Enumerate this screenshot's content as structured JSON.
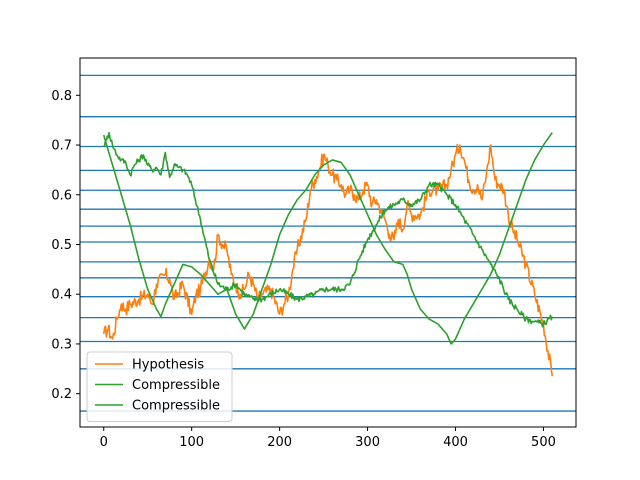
{
  "chart_data": {
    "type": "line",
    "grid": "horizontal reference lines",
    "legend_placement": "lower-left",
    "xlim": [
      -27,
      537
    ],
    "ylim": [
      0.133,
      0.875
    ],
    "x_ticks": [
      0,
      100,
      200,
      300,
      400,
      500
    ],
    "y_ticks": [
      0.2,
      0.3,
      0.4,
      0.5,
      0.6,
      0.7,
      0.8
    ],
    "hlines": [
      0.165,
      0.25,
      0.305,
      0.353,
      0.395,
      0.433,
      0.465,
      0.505,
      0.537,
      0.571,
      0.609,
      0.649,
      0.697,
      0.757,
      0.84
    ],
    "hline_color": "#1f77b4",
    "series": [
      {
        "name": "Hypothesis",
        "color": "#ff7f0e",
        "jitter": 0.014,
        "x": [
          0,
          5,
          10,
          15,
          20,
          25,
          30,
          40,
          50,
          55,
          60,
          70,
          75,
          80,
          90,
          100,
          105,
          110,
          120,
          125,
          130,
          135,
          140,
          145,
          150,
          155,
          160,
          165,
          170,
          175,
          180,
          190,
          200,
          205,
          210,
          215,
          220,
          230,
          235,
          240,
          245,
          250,
          255,
          260,
          265,
          270,
          275,
          280,
          285,
          290,
          295,
          300,
          305,
          310,
          315,
          320,
          325,
          330,
          335,
          340,
          345,
          350,
          360,
          370,
          380,
          390,
          395,
          400,
          405,
          410,
          415,
          420,
          425,
          430,
          435,
          440,
          445,
          450,
          455,
          460,
          465,
          470,
          480,
          490,
          500,
          510
        ],
        "y": [
          0.32,
          0.33,
          0.31,
          0.35,
          0.38,
          0.37,
          0.38,
          0.39,
          0.4,
          0.38,
          0.42,
          0.44,
          0.43,
          0.39,
          0.42,
          0.36,
          0.4,
          0.41,
          0.47,
          0.45,
          0.52,
          0.5,
          0.49,
          0.44,
          0.42,
          0.4,
          0.41,
          0.44,
          0.42,
          0.39,
          0.4,
          0.41,
          0.36,
          0.38,
          0.4,
          0.45,
          0.49,
          0.55,
          0.61,
          0.63,
          0.65,
          0.68,
          0.66,
          0.64,
          0.63,
          0.62,
          0.6,
          0.61,
          0.6,
          0.59,
          0.61,
          0.62,
          0.58,
          0.59,
          0.57,
          0.55,
          0.52,
          0.51,
          0.55,
          0.53,
          0.58,
          0.56,
          0.56,
          0.61,
          0.61,
          0.62,
          0.65,
          0.68,
          0.7,
          0.67,
          0.63,
          0.61,
          0.62,
          0.59,
          0.64,
          0.7,
          0.63,
          0.62,
          0.61,
          0.56,
          0.53,
          0.51,
          0.46,
          0.4,
          0.34,
          0.235
        ]
      },
      {
        "name": "Compressible",
        "color": "#2ca02c",
        "jitter": 0.006,
        "x": [
          0,
          3,
          6,
          10,
          15,
          20,
          25,
          30,
          35,
          40,
          45,
          50,
          55,
          60,
          65,
          70,
          75,
          80,
          85,
          90,
          95,
          100,
          110,
          120,
          130,
          140,
          150,
          155,
          160,
          170,
          180,
          190,
          200,
          210,
          220,
          230,
          240,
          250,
          260,
          270,
          280,
          290,
          300,
          310,
          320,
          330,
          340,
          350,
          360,
          370,
          380,
          390,
          400,
          410,
          420,
          430,
          440,
          450,
          460,
          470,
          480,
          490,
          500,
          510
        ],
        "y": [
          0.7,
          0.71,
          0.725,
          0.7,
          0.68,
          0.67,
          0.665,
          0.64,
          0.66,
          0.67,
          0.68,
          0.66,
          0.65,
          0.655,
          0.64,
          0.685,
          0.635,
          0.66,
          0.655,
          0.65,
          0.64,
          0.62,
          0.55,
          0.47,
          0.42,
          0.41,
          0.42,
          0.41,
          0.4,
          0.39,
          0.39,
          0.4,
          0.41,
          0.4,
          0.39,
          0.395,
          0.4,
          0.41,
          0.41,
          0.41,
          0.42,
          0.47,
          0.51,
          0.54,
          0.57,
          0.58,
          0.59,
          0.58,
          0.59,
          0.62,
          0.62,
          0.6,
          0.58,
          0.55,
          0.52,
          0.49,
          0.46,
          0.43,
          0.39,
          0.37,
          0.35,
          0.345,
          0.34,
          0.355
        ]
      },
      {
        "name": "Compressible",
        "color": "#2ca02c",
        "jitter": 0.0,
        "x": [
          0,
          10,
          20,
          30,
          40,
          50,
          60,
          65,
          70,
          80,
          90,
          100,
          110,
          120,
          130,
          140,
          150,
          160,
          170,
          180,
          190,
          200,
          210,
          220,
          230,
          240,
          250,
          260,
          270,
          280,
          290,
          300,
          310,
          320,
          330,
          340,
          345,
          350,
          360,
          370,
          380,
          390,
          395,
          400,
          410,
          420,
          430,
          440,
          450,
          460,
          470,
          480,
          490,
          500,
          510
        ],
        "y": [
          0.72,
          0.66,
          0.6,
          0.54,
          0.47,
          0.41,
          0.37,
          0.355,
          0.38,
          0.42,
          0.46,
          0.455,
          0.44,
          0.42,
          0.4,
          0.41,
          0.36,
          0.33,
          0.36,
          0.41,
          0.46,
          0.52,
          0.56,
          0.59,
          0.61,
          0.64,
          0.66,
          0.67,
          0.665,
          0.64,
          0.6,
          0.56,
          0.52,
          0.49,
          0.465,
          0.46,
          0.44,
          0.41,
          0.37,
          0.35,
          0.34,
          0.32,
          0.3,
          0.31,
          0.35,
          0.38,
          0.41,
          0.44,
          0.48,
          0.53,
          0.58,
          0.63,
          0.67,
          0.7,
          0.725
        ]
      }
    ]
  }
}
